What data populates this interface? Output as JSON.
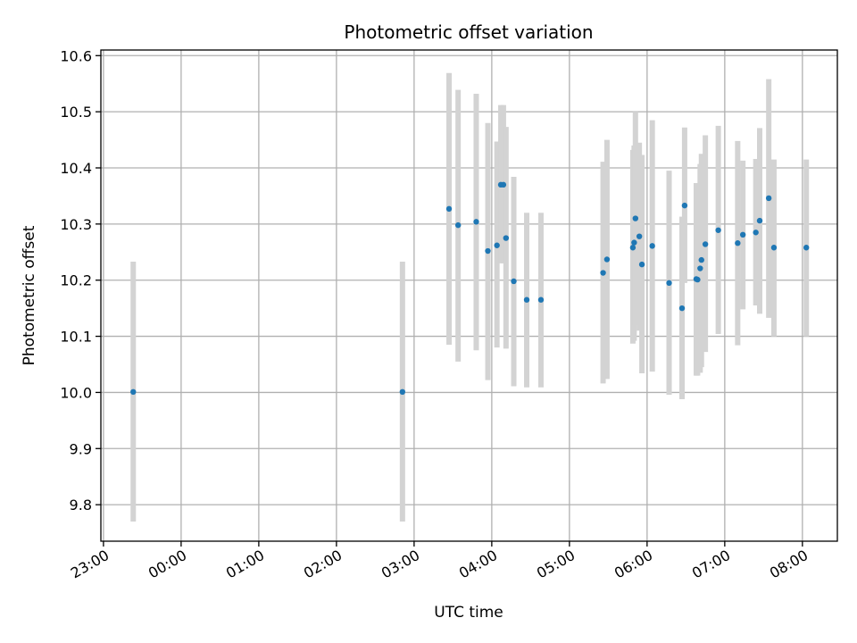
{
  "chart_data": {
    "type": "scatter",
    "title": "Photometric offset variation",
    "xlabel": "UTC time",
    "ylabel": "Photometric offset",
    "xlim": [
      "22:58",
      "08:27"
    ],
    "ylim": [
      9.735,
      10.61
    ],
    "grid": true,
    "x_ticks": [
      "23:00",
      "00:00",
      "01:00",
      "02:00",
      "03:00",
      "04:00",
      "05:00",
      "06:00",
      "07:00",
      "08:00"
    ],
    "y_ticks": [
      "9.8",
      "9.9",
      "10.0",
      "10.1",
      "10.2",
      "10.3",
      "10.4",
      "10.5",
      "10.6"
    ],
    "colors": {
      "point": "#1f77b4",
      "errorbar": "#d3d3d3",
      "grid": "#b0b0b0"
    },
    "points": [
      {
        "x": "23:23",
        "y": 10.001,
        "low": 9.77,
        "high": 10.233
      },
      {
        "x": "02:51",
        "y": 10.001,
        "low": 9.77,
        "high": 10.233
      },
      {
        "x": "03:27",
        "y": 10.327,
        "low": 10.085,
        "high": 10.569
      },
      {
        "x": "03:34",
        "y": 10.298,
        "low": 10.055,
        "high": 10.539
      },
      {
        "x": "03:48",
        "y": 10.304,
        "low": 10.075,
        "high": 10.532
      },
      {
        "x": "03:57",
        "y": 10.252,
        "low": 10.022,
        "high": 10.48
      },
      {
        "x": "04:04",
        "y": 10.262,
        "low": 10.08,
        "high": 10.447
      },
      {
        "x": "04:07",
        "y": 10.37,
        "low": 10.23,
        "high": 10.512
      },
      {
        "x": "04:09",
        "y": 10.37,
        "low": 10.23,
        "high": 10.512
      },
      {
        "x": "04:11",
        "y": 10.275,
        "low": 10.078,
        "high": 10.473
      },
      {
        "x": "04:17",
        "y": 10.198,
        "low": 10.011,
        "high": 10.384
      },
      {
        "x": "04:27",
        "y": 10.165,
        "low": 10.009,
        "high": 10.32
      },
      {
        "x": "04:38",
        "y": 10.165,
        "low": 10.009,
        "high": 10.32
      },
      {
        "x": "05:26",
        "y": 10.213,
        "low": 10.016,
        "high": 10.411
      },
      {
        "x": "05:29",
        "y": 10.237,
        "low": 10.024,
        "high": 10.45
      },
      {
        "x": "05:49",
        "y": 10.258,
        "low": 10.087,
        "high": 10.432
      },
      {
        "x": "05:50",
        "y": 10.267,
        "low": 10.092,
        "high": 10.44
      },
      {
        "x": "05:51",
        "y": 10.31,
        "low": 10.12,
        "high": 10.5
      },
      {
        "x": "05:54",
        "y": 10.278,
        "low": 10.11,
        "high": 10.445
      },
      {
        "x": "05:56",
        "y": 10.228,
        "low": 10.034,
        "high": 10.423
      },
      {
        "x": "06:04",
        "y": 10.261,
        "low": 10.037,
        "high": 10.485
      },
      {
        "x": "06:17",
        "y": 10.195,
        "low": 9.996,
        "high": 10.395
      },
      {
        "x": "06:27",
        "y": 10.15,
        "low": 9.988,
        "high": 10.313
      },
      {
        "x": "06:29",
        "y": 10.333,
        "low": 10.195,
        "high": 10.472
      },
      {
        "x": "06:38",
        "y": 10.202,
        "low": 10.03,
        "high": 10.373
      },
      {
        "x": "06:39",
        "y": 10.201,
        "low": 10.03,
        "high": 10.373
      },
      {
        "x": "06:41",
        "y": 10.221,
        "low": 10.035,
        "high": 10.407
      },
      {
        "x": "06:42",
        "y": 10.236,
        "low": 10.045,
        "high": 10.425
      },
      {
        "x": "06:45",
        "y": 10.264,
        "low": 10.072,
        "high": 10.458
      },
      {
        "x": "06:55",
        "y": 10.289,
        "low": 10.104,
        "high": 10.475
      },
      {
        "x": "07:10",
        "y": 10.266,
        "low": 10.084,
        "high": 10.448
      },
      {
        "x": "07:14",
        "y": 10.281,
        "low": 10.148,
        "high": 10.413
      },
      {
        "x": "07:24",
        "y": 10.285,
        "low": 10.155,
        "high": 10.416
      },
      {
        "x": "07:27",
        "y": 10.306,
        "low": 10.14,
        "high": 10.471
      },
      {
        "x": "07:34",
        "y": 10.346,
        "low": 10.133,
        "high": 10.558
      },
      {
        "x": "07:38",
        "y": 10.258,
        "low": 10.1,
        "high": 10.415
      },
      {
        "x": "08:03",
        "y": 10.258,
        "low": 10.1,
        "high": 10.415
      }
    ]
  }
}
